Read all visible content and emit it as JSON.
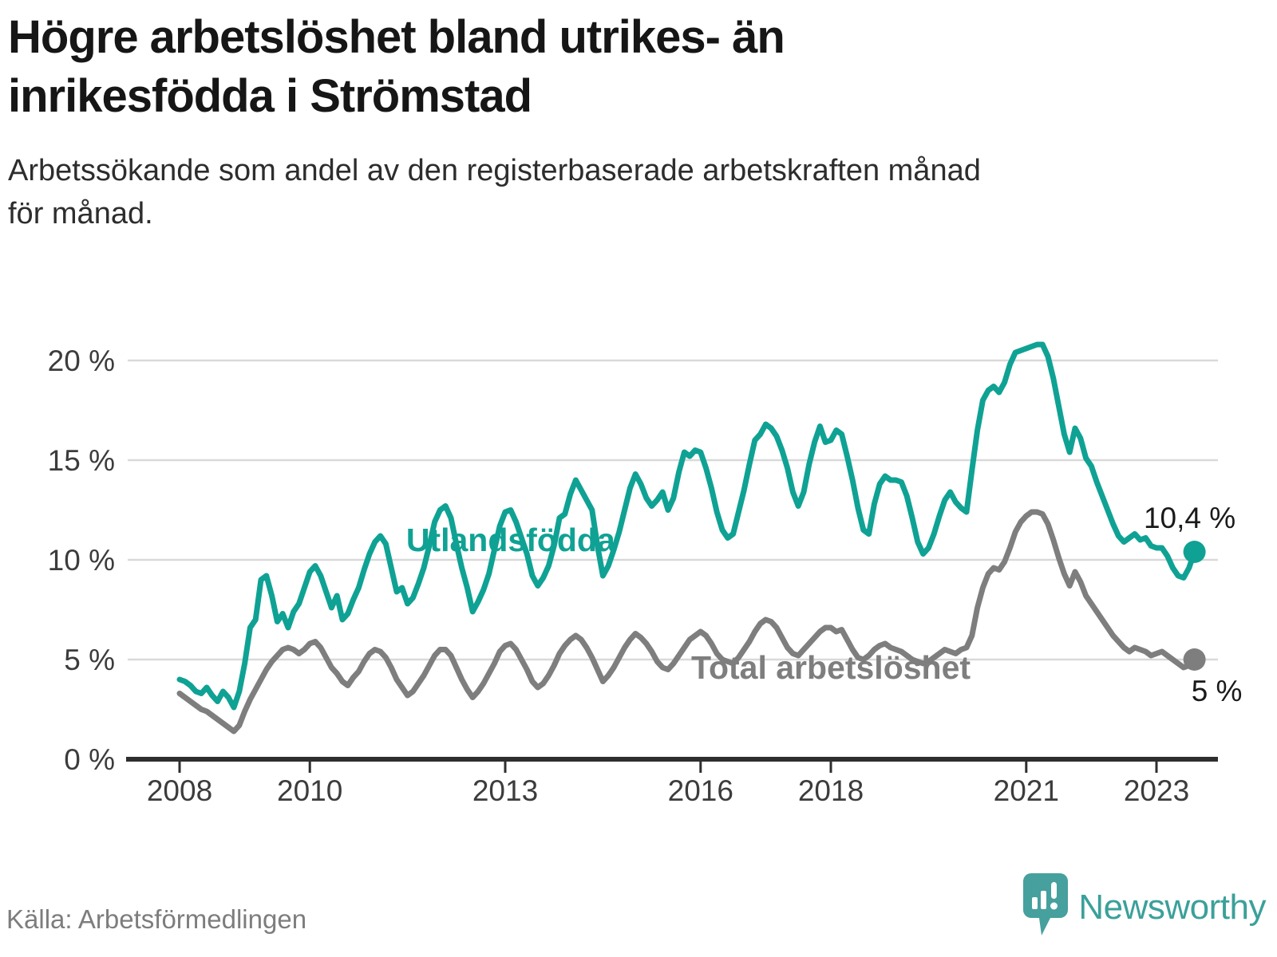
{
  "header": {
    "title_lines": [
      "Högre arbetslöshet bland utrikes- än",
      "inrikesfödda i Strömstad"
    ],
    "subtitle_lines": [
      "Arbetssökande som andel av den registerbaserade arbetskraften månad",
      "för månad."
    ]
  },
  "footer": {
    "source": "Källa: Arbetsförmedlingen",
    "brand": "Newsworthy"
  },
  "colors": {
    "accent_teal": "#0fa294",
    "series_gray": "#7e7e7e",
    "grid": "#d9d9d9",
    "axis": "#2e2e2e",
    "tick_text": "#3c3c3c",
    "value_label_text": "#1a1a1a",
    "logo_teal": "#46a09d",
    "logo_text_teal": "#3ba09a"
  },
  "chart_data": {
    "type": "line",
    "x_start": "2008-01",
    "x_end": "2023-08",
    "months_total": 188,
    "x_tick_years": [
      2008,
      2010,
      2013,
      2016,
      2018,
      2021,
      2023
    ],
    "x_tick_labels": [
      "2008",
      "2010",
      "2013",
      "2016",
      "2018",
      "2021",
      "2023"
    ],
    "y_ticks": [
      0,
      5,
      10,
      15,
      20
    ],
    "y_tick_labels": [
      "0 %",
      "5 %",
      "10 %",
      "15 %",
      "20 %"
    ],
    "ylim": [
      0,
      21.5
    ],
    "grid": true,
    "legend_position": "inline-labels",
    "series": [
      {
        "name": "Total arbetslöshet",
        "color": "#7e7e7e",
        "end_value": 5.0,
        "end_label": "5 %",
        "label_anchor": {
          "month_index": 120,
          "value": 4.6
        },
        "values": [
          3.3,
          3.1,
          2.9,
          2.7,
          2.5,
          2.4,
          2.2,
          2.0,
          1.8,
          1.6,
          1.4,
          1.7,
          2.4,
          3.0,
          3.5,
          4.0,
          4.5,
          4.9,
          5.2,
          5.5,
          5.6,
          5.5,
          5.3,
          5.5,
          5.8,
          5.9,
          5.6,
          5.1,
          4.6,
          4.3,
          3.9,
          3.7,
          4.1,
          4.4,
          4.9,
          5.3,
          5.5,
          5.4,
          5.1,
          4.6,
          4.0,
          3.6,
          3.2,
          3.4,
          3.8,
          4.2,
          4.7,
          5.2,
          5.5,
          5.5,
          5.2,
          4.6,
          4.0,
          3.5,
          3.1,
          3.4,
          3.8,
          4.3,
          4.8,
          5.4,
          5.7,
          5.8,
          5.5,
          5.0,
          4.5,
          3.9,
          3.6,
          3.8,
          4.2,
          4.7,
          5.3,
          5.7,
          6.0,
          6.2,
          6.0,
          5.6,
          5.1,
          4.5,
          3.9,
          4.2,
          4.6,
          5.1,
          5.6,
          6.0,
          6.3,
          6.1,
          5.8,
          5.4,
          4.9,
          4.6,
          4.5,
          4.8,
          5.2,
          5.6,
          6.0,
          6.2,
          6.4,
          6.2,
          5.8,
          5.3,
          5.0,
          4.9,
          4.8,
          5.1,
          5.5,
          5.9,
          6.4,
          6.8,
          7.0,
          6.9,
          6.6,
          6.1,
          5.6,
          5.3,
          5.2,
          5.5,
          5.8,
          6.1,
          6.4,
          6.6,
          6.6,
          6.4,
          6.5,
          6.0,
          5.5,
          5.1,
          5.0,
          5.2,
          5.5,
          5.7,
          5.8,
          5.6,
          5.5,
          5.4,
          5.2,
          5.0,
          4.9,
          4.8,
          4.9,
          5.1,
          5.3,
          5.5,
          5.4,
          5.3,
          5.5,
          5.6,
          6.2,
          7.6,
          8.6,
          9.3,
          9.6,
          9.5,
          9.9,
          10.6,
          11.4,
          11.9,
          12.2,
          12.4,
          12.4,
          12.3,
          11.8,
          11.0,
          10.1,
          9.3,
          8.7,
          9.4,
          8.9,
          8.2,
          7.8,
          7.4,
          7.0,
          6.6,
          6.2,
          5.9,
          5.6,
          5.4,
          5.6,
          5.5,
          5.4,
          5.2,
          5.3,
          5.4,
          5.2,
          5.0,
          4.8,
          4.6,
          4.7,
          5.0
        ]
      },
      {
        "name": "Utlandsfödda",
        "color": "#0fa294",
        "end_value": 10.4,
        "end_label": "10,4 %",
        "label_anchor": {
          "month_index": 61,
          "value": 11.0
        },
        "values": [
          4.0,
          3.9,
          3.7,
          3.4,
          3.3,
          3.6,
          3.2,
          2.9,
          3.4,
          3.1,
          2.6,
          3.4,
          4.8,
          6.6,
          7.0,
          9.0,
          9.2,
          8.2,
          6.9,
          7.3,
          6.6,
          7.4,
          7.8,
          8.6,
          9.4,
          9.7,
          9.2,
          8.4,
          7.6,
          8.2,
          7.0,
          7.3,
          8.0,
          8.6,
          9.5,
          10.3,
          10.9,
          11.2,
          10.8,
          9.6,
          8.4,
          8.6,
          7.8,
          8.1,
          8.8,
          9.6,
          10.7,
          11.9,
          12.5,
          12.7,
          12.1,
          10.8,
          9.6,
          8.6,
          7.4,
          7.9,
          8.5,
          9.3,
          10.5,
          11.7,
          12.4,
          12.5,
          11.9,
          11.1,
          10.3,
          9.2,
          8.7,
          9.1,
          9.7,
          10.7,
          12.1,
          12.3,
          13.3,
          14.0,
          13.5,
          13.0,
          12.5,
          10.7,
          9.2,
          9.7,
          10.5,
          11.4,
          12.5,
          13.6,
          14.3,
          13.8,
          13.1,
          12.7,
          13.0,
          13.4,
          12.5,
          13.1,
          14.4,
          15.4,
          15.2,
          15.5,
          15.4,
          14.6,
          13.6,
          12.4,
          11.5,
          11.1,
          11.3,
          12.4,
          13.5,
          14.8,
          16.0,
          16.3,
          16.8,
          16.6,
          16.2,
          15.5,
          14.6,
          13.4,
          12.7,
          13.4,
          14.8,
          15.9,
          16.7,
          15.9,
          16.0,
          16.5,
          16.3,
          15.2,
          14.0,
          12.6,
          11.5,
          11.3,
          12.8,
          13.8,
          14.2,
          14.0,
          14.0,
          13.9,
          13.2,
          12.1,
          10.9,
          10.3,
          10.6,
          11.3,
          12.2,
          13.0,
          13.4,
          12.9,
          12.6,
          12.4,
          14.5,
          16.5,
          18.0,
          18.5,
          18.7,
          18.4,
          18.9,
          19.8,
          20.4,
          20.5,
          20.6,
          20.7,
          20.8,
          20.8,
          20.2,
          19.1,
          17.7,
          16.3,
          15.4,
          16.6,
          16.1,
          15.1,
          14.7,
          13.9,
          13.2,
          12.5,
          11.8,
          11.2,
          10.9,
          11.1,
          11.3,
          11.0,
          11.1,
          10.7,
          10.6,
          10.6,
          10.2,
          9.6,
          9.2,
          9.1,
          9.6,
          10.4
        ]
      }
    ]
  }
}
